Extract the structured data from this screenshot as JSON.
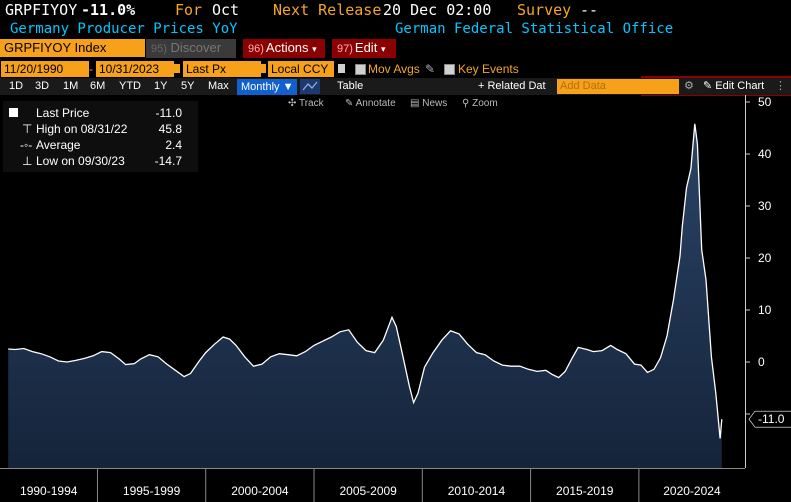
{
  "header": {
    "ticker": "GRPFIYOY",
    "change": "-11.0%",
    "for_label": "For",
    "for_value": "Oct",
    "next_release_label": "Next Release",
    "next_release_value": "20 Dec 02:00",
    "survey_label": "Survey",
    "survey_value": "--",
    "description": "Germany Producer Prices YoY",
    "source": "German Federal Statistical Office"
  },
  "toolbar": {
    "security": "GRPFIYOY Index",
    "discover_label": "Discover",
    "actions_num": "96)",
    "actions_label": "Actions",
    "edit_num": "97)",
    "edit_label": "Edit",
    "chart_type": "Line Chart"
  },
  "range": {
    "start": "11/20/1990",
    "end": "10/31/2023",
    "field": "Last Px",
    "currency": "Local CCY",
    "mov_avgs": "Mov Avgs",
    "key_events": "Key Events"
  },
  "periods": {
    "items": [
      "1D",
      "3D",
      "1M",
      "6M",
      "YTD",
      "1Y",
      "5Y",
      "Max"
    ],
    "frequency": "Monthly",
    "table": "Table",
    "related": "Related Dat",
    "add_data_placeholder": "Add Data",
    "edit_chart": "Edit Chart"
  },
  "tools": [
    "Track",
    "Annotate",
    "News",
    "Zoom"
  ],
  "legend": {
    "last_label": "Last Price",
    "last_value": "-11.0",
    "high_label": "High on 08/31/22",
    "high_value": "45.8",
    "avg_label": "Average",
    "avg_value": "2.4",
    "low_label": "Low on 09/30/23",
    "low_value": "-14.7"
  },
  "colors": {
    "amber": "#f5a623",
    "cyan": "#00c8ff",
    "area_fill": "#1b2d4a",
    "line": "#ffffff"
  },
  "chart_data": {
    "type": "area",
    "title": "",
    "xlabel": "",
    "ylabel": "",
    "ylim": [
      -20,
      50
    ],
    "yticks": [
      -10,
      0,
      10,
      20,
      30,
      40,
      50
    ],
    "last_value_label": "-11.0",
    "x_period_labels": [
      "1990-1994",
      "1995-1999",
      "2000-2004",
      "2005-2009",
      "2010-2014",
      "2015-2019",
      "2020-2024"
    ],
    "grid": false,
    "series": [
      {
        "values": [
          [
            1990.88,
            2.5
          ],
          [
            1991.2,
            2.4
          ],
          [
            1991.6,
            2.6
          ],
          [
            1992.0,
            2.0
          ],
          [
            1992.4,
            1.6
          ],
          [
            1992.8,
            1.0
          ],
          [
            1993.2,
            0.2
          ],
          [
            1993.6,
            0.0
          ],
          [
            1994.0,
            0.3
          ],
          [
            1994.4,
            0.7
          ],
          [
            1994.8,
            1.2
          ],
          [
            1995.2,
            2.0
          ],
          [
            1995.6,
            1.8
          ],
          [
            1996.0,
            0.6
          ],
          [
            1996.3,
            -0.5
          ],
          [
            1996.7,
            -0.3
          ],
          [
            1997.0,
            0.6
          ],
          [
            1997.4,
            1.4
          ],
          [
            1997.8,
            1.0
          ],
          [
            1998.2,
            -0.4
          ],
          [
            1998.6,
            -1.6
          ],
          [
            1999.0,
            -2.8
          ],
          [
            1999.3,
            -2.2
          ],
          [
            1999.7,
            0.2
          ],
          [
            2000.0,
            1.8
          ],
          [
            2000.4,
            3.4
          ],
          [
            2000.8,
            4.8
          ],
          [
            2001.1,
            4.4
          ],
          [
            2001.4,
            3.2
          ],
          [
            2001.8,
            1.0
          ],
          [
            2002.2,
            -0.8
          ],
          [
            2002.6,
            -0.4
          ],
          [
            2003.0,
            1.0
          ],
          [
            2003.4,
            1.6
          ],
          [
            2003.8,
            1.4
          ],
          [
            2004.2,
            1.2
          ],
          [
            2004.6,
            2.0
          ],
          [
            2005.0,
            3.2
          ],
          [
            2005.4,
            4.0
          ],
          [
            2005.8,
            4.8
          ],
          [
            2006.2,
            5.8
          ],
          [
            2006.6,
            6.2
          ],
          [
            2007.0,
            3.8
          ],
          [
            2007.4,
            2.2
          ],
          [
            2007.8,
            1.8
          ],
          [
            2008.2,
            4.2
          ],
          [
            2008.6,
            8.6
          ],
          [
            2008.8,
            6.8
          ],
          [
            2009.1,
            1.2
          ],
          [
            2009.4,
            -4.6
          ],
          [
            2009.6,
            -7.8
          ],
          [
            2009.8,
            -6.0
          ],
          [
            2010.1,
            -1.0
          ],
          [
            2010.5,
            1.8
          ],
          [
            2010.9,
            4.2
          ],
          [
            2011.3,
            6.0
          ],
          [
            2011.7,
            5.4
          ],
          [
            2012.1,
            3.4
          ],
          [
            2012.5,
            1.8
          ],
          [
            2012.9,
            1.4
          ],
          [
            2013.3,
            0.2
          ],
          [
            2013.7,
            -0.6
          ],
          [
            2014.1,
            -0.8
          ],
          [
            2014.5,
            -0.8
          ],
          [
            2014.9,
            -1.4
          ],
          [
            2015.3,
            -1.8
          ],
          [
            2015.7,
            -1.6
          ],
          [
            2016.0,
            -2.4
          ],
          [
            2016.3,
            -3.0
          ],
          [
            2016.6,
            -1.8
          ],
          [
            2016.9,
            0.6
          ],
          [
            2017.2,
            2.8
          ],
          [
            2017.6,
            2.4
          ],
          [
            2017.9,
            2.0
          ],
          [
            2018.3,
            2.2
          ],
          [
            2018.7,
            3.2
          ],
          [
            2019.0,
            2.4
          ],
          [
            2019.4,
            1.6
          ],
          [
            2019.8,
            -0.4
          ],
          [
            2020.1,
            -0.6
          ],
          [
            2020.4,
            -2.0
          ],
          [
            2020.7,
            -1.4
          ],
          [
            2021.0,
            0.8
          ],
          [
            2021.3,
            5.0
          ],
          [
            2021.6,
            12.0
          ],
          [
            2021.9,
            20.4
          ],
          [
            2022.0,
            25.9
          ],
          [
            2022.2,
            33.5
          ],
          [
            2022.4,
            37.2
          ],
          [
            2022.58,
            45.8
          ],
          [
            2022.7,
            41.9
          ],
          [
            2022.9,
            21.6
          ],
          [
            2023.1,
            15.8
          ],
          [
            2023.35,
            1.0
          ],
          [
            2023.55,
            -6.0
          ],
          [
            2023.75,
            -14.7
          ],
          [
            2023.83,
            -11.0
          ]
        ]
      }
    ]
  }
}
